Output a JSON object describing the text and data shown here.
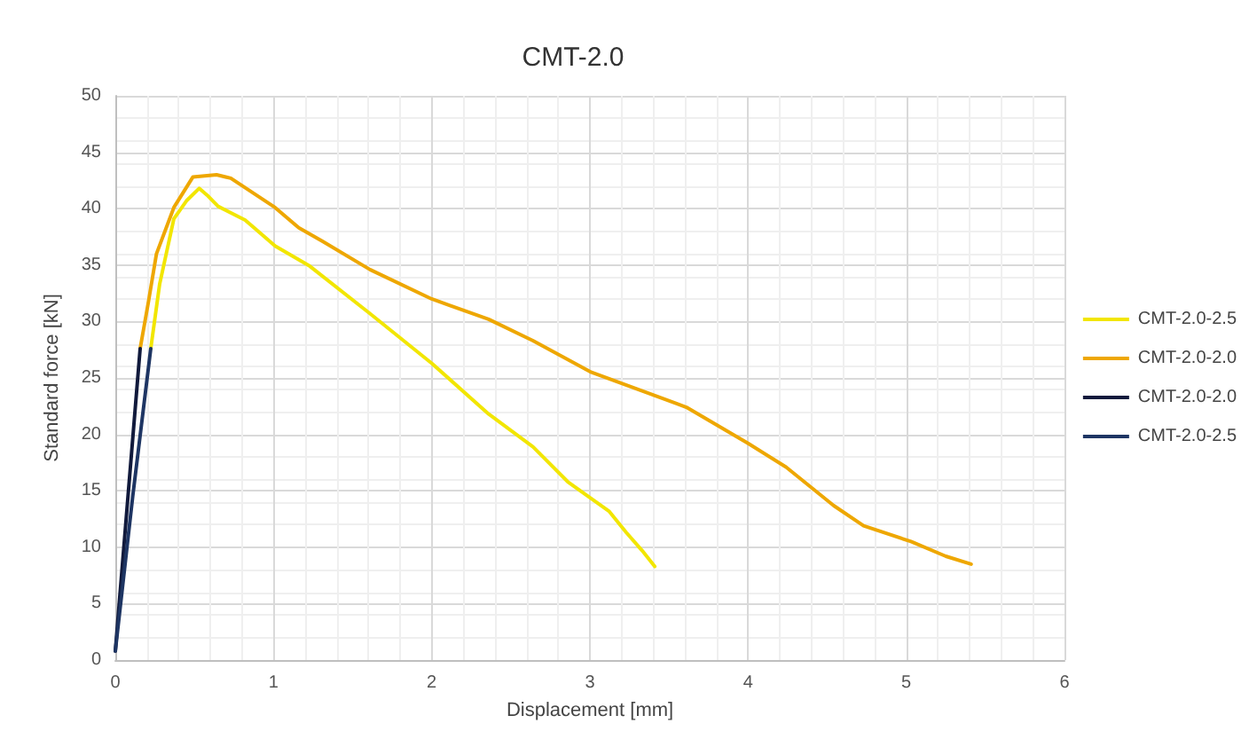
{
  "chart_data": {
    "type": "line",
    "title": "CMT-2.0",
    "xlabel": "Displacement [mm]",
    "ylabel": "Standard force [kN]",
    "xlim": [
      0,
      6
    ],
    "xticks": [
      0,
      1,
      2,
      3,
      4,
      5,
      6
    ],
    "ylim": [
      0,
      50
    ],
    "yticks": [
      0,
      5,
      10,
      15,
      20,
      25,
      30,
      35,
      40,
      45,
      50
    ],
    "grid": true,
    "legend": "right",
    "marker": "none",
    "line_style": "solid",
    "series": [
      {
        "name": "CMT-2.0-2.5",
        "color": "#f2e600",
        "x": [
          0.224,
          0.28,
          0.37,
          0.45,
          0.53,
          0.58,
          0.65,
          0.82,
          1.01,
          1.23,
          1.61,
          2.0,
          2.36,
          2.64,
          2.86,
          3.12,
          3.23,
          3.33,
          3.41
        ],
        "values": [
          27.6,
          33.3,
          39.1,
          40.7,
          41.8,
          41.2,
          40.2,
          39.0,
          36.7,
          34.9,
          30.7,
          26.3,
          21.8,
          18.9,
          15.8,
          13.2,
          11.3,
          9.7,
          8.3
        ]
      },
      {
        "name": "CMT-2.0-2.0",
        "color": "#eea700",
        "x": [
          0.157,
          0.21,
          0.26,
          0.37,
          0.49,
          0.64,
          0.73,
          1.01,
          1.16,
          1.31,
          1.61,
          2.0,
          2.36,
          2.64,
          3.01,
          3.38,
          3.61,
          4.0,
          4.24,
          4.54,
          4.73,
          5.03,
          5.25,
          5.41
        ],
        "values": [
          27.6,
          31.8,
          36.0,
          40.1,
          42.8,
          43.0,
          42.7,
          40.1,
          38.3,
          37.1,
          34.6,
          32.0,
          30.2,
          28.3,
          25.5,
          23.6,
          22.4,
          19.2,
          17.1,
          13.7,
          11.9,
          10.5,
          9.2,
          8.5
        ]
      },
      {
        "name": "CMT-2.0-2.0",
        "color": "#111a3c",
        "x": [
          0,
          0.08,
          0.157
        ],
        "values": [
          0.8,
          14.5,
          27.6
        ]
      },
      {
        "name": "CMT-2.0-2.5",
        "color": "#1e3563",
        "x": [
          0,
          0.11,
          0.224
        ],
        "values": [
          0.8,
          14.5,
          27.6
        ]
      }
    ]
  }
}
